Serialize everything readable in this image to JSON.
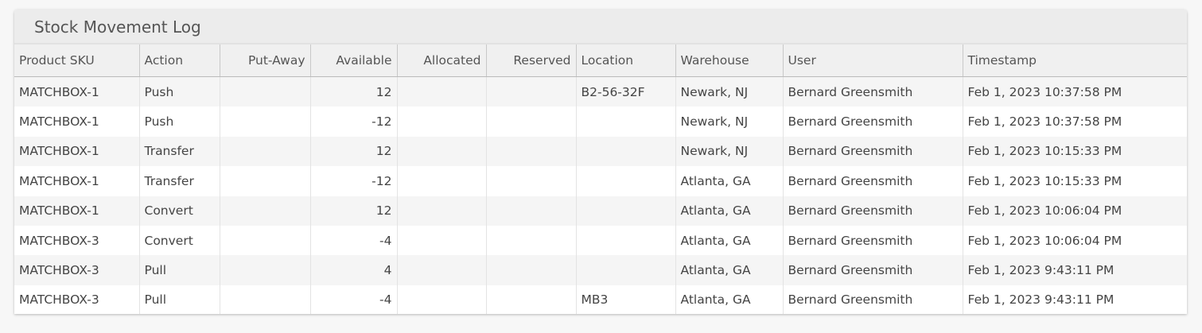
{
  "title": "Stock Movement Log",
  "columns": [
    "Product SKU",
    "Action",
    "Put-Away",
    "Available",
    "Allocated",
    "Reserved",
    "Location",
    "Warehouse",
    "User",
    "Timestamp"
  ],
  "rows": [
    {
      "sku": "MATCHBOX-1",
      "action": "Push",
      "putaway": "",
      "available": "12",
      "allocated": "",
      "reserved": "",
      "location": "B2-56-32F",
      "warehouse": "Newark, NJ",
      "user": "Bernard Greensmith",
      "timestamp": "Feb 1, 2023 10:37:58 PM"
    },
    {
      "sku": "MATCHBOX-1",
      "action": "Push",
      "putaway": "",
      "available": "-12",
      "allocated": "",
      "reserved": "",
      "location": "",
      "warehouse": "Newark, NJ",
      "user": "Bernard Greensmith",
      "timestamp": "Feb 1, 2023 10:37:58 PM"
    },
    {
      "sku": "MATCHBOX-1",
      "action": "Transfer",
      "putaway": "",
      "available": "12",
      "allocated": "",
      "reserved": "",
      "location": "",
      "warehouse": "Newark, NJ",
      "user": "Bernard Greensmith",
      "timestamp": "Feb 1, 2023 10:15:33 PM"
    },
    {
      "sku": "MATCHBOX-1",
      "action": "Transfer",
      "putaway": "",
      "available": "-12",
      "allocated": "",
      "reserved": "",
      "location": "",
      "warehouse": "Atlanta, GA",
      "user": "Bernard Greensmith",
      "timestamp": "Feb 1, 2023 10:15:33 PM"
    },
    {
      "sku": "MATCHBOX-1",
      "action": "Convert",
      "putaway": "",
      "available": "12",
      "allocated": "",
      "reserved": "",
      "location": "",
      "warehouse": "Atlanta, GA",
      "user": "Bernard Greensmith",
      "timestamp": "Feb 1, 2023 10:06:04 PM"
    },
    {
      "sku": "MATCHBOX-3",
      "action": "Convert",
      "putaway": "",
      "available": "-4",
      "allocated": "",
      "reserved": "",
      "location": "",
      "warehouse": "Atlanta, GA",
      "user": "Bernard Greensmith",
      "timestamp": "Feb 1, 2023 10:06:04 PM"
    },
    {
      "sku": "MATCHBOX-3",
      "action": "Pull",
      "putaway": "",
      "available": "4",
      "allocated": "",
      "reserved": "",
      "location": "",
      "warehouse": "Atlanta, GA",
      "user": "Bernard Greensmith",
      "timestamp": "Feb 1, 2023 9:43:11 PM"
    },
    {
      "sku": "MATCHBOX-3",
      "action": "Pull",
      "putaway": "",
      "available": "-4",
      "allocated": "",
      "reserved": "",
      "location": "MB3",
      "warehouse": "Atlanta, GA",
      "user": "Bernard Greensmith",
      "timestamp": "Feb 1, 2023 9:43:11 PM"
    }
  ]
}
